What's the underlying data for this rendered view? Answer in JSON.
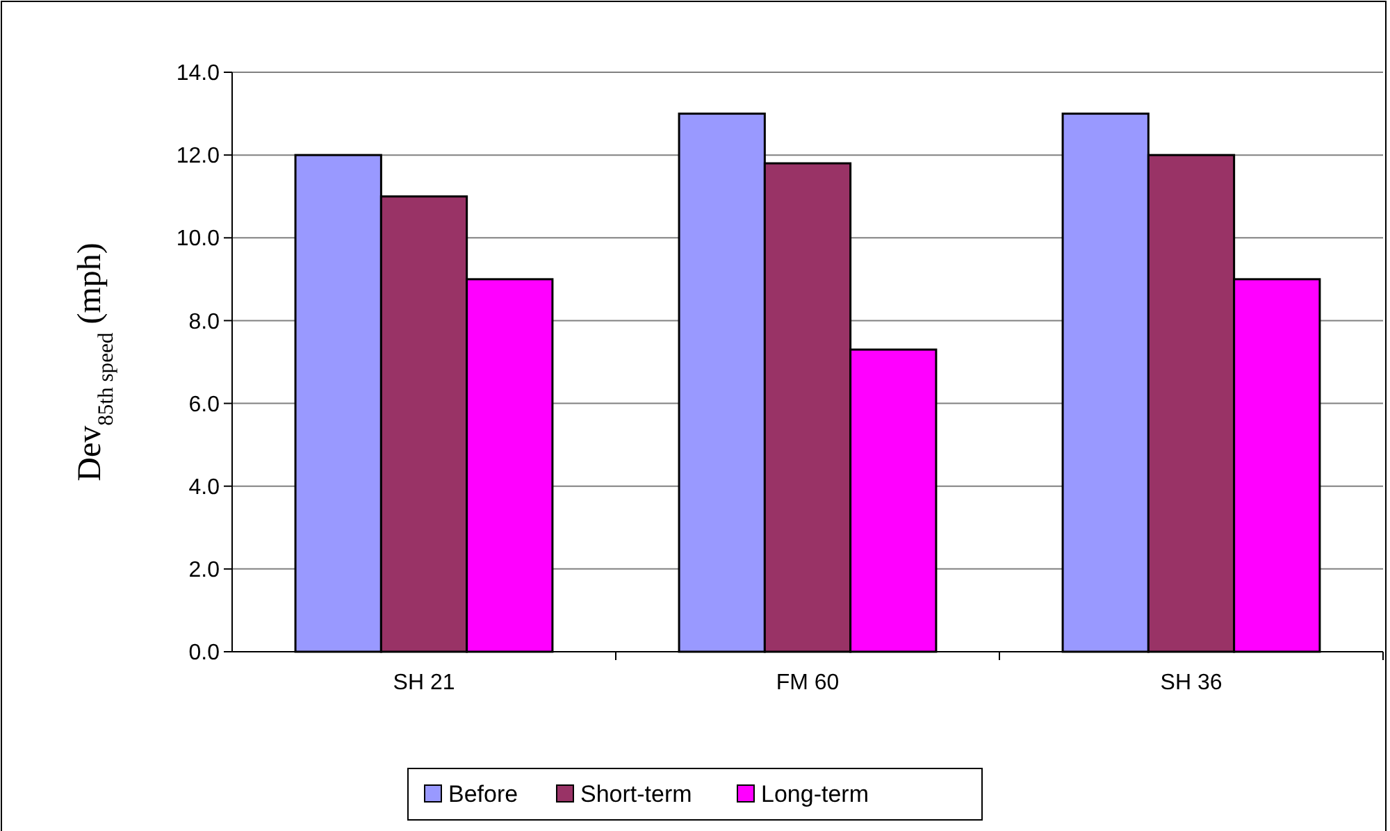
{
  "chart_data": {
    "type": "bar",
    "ylabel": "Dev$_{85th speed}$ (mph)",
    "categories": [
      "SH 21",
      "FM 60",
      "SH 36"
    ],
    "series": [
      {
        "name": "Before",
        "color": "#9999ff",
        "values": [
          12.0,
          13.0,
          13.0
        ]
      },
      {
        "name": "Short-term",
        "color": "#993366",
        "values": [
          11.0,
          11.8,
          12.0
        ]
      },
      {
        "name": "Long-term",
        "color": "#ff00ff",
        "values": [
          9.0,
          7.3,
          9.0
        ]
      }
    ],
    "ylim": [
      0,
      14
    ],
    "yticks": [
      {
        "value": 0,
        "label": "0.0"
      },
      {
        "value": 2,
        "label": "2.0"
      },
      {
        "value": 4,
        "label": "4.0"
      },
      {
        "value": 6,
        "label": "6.0"
      },
      {
        "value": 8,
        "label": "8.0"
      },
      {
        "value": 10,
        "label": "10.0"
      },
      {
        "value": 12,
        "label": "12.0"
      },
      {
        "value": 14,
        "label": "14.0"
      }
    ],
    "grid": "y",
    "legend": "bottom"
  }
}
